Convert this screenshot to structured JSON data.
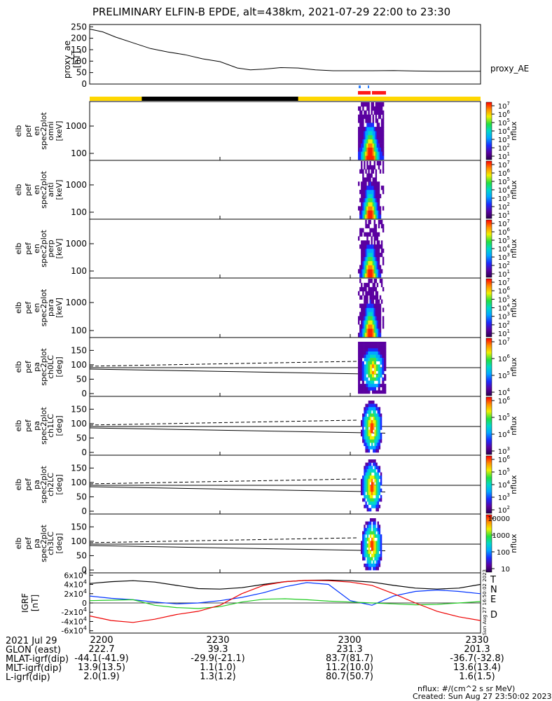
{
  "title": "PRELIMINARY ELFIN-B EPDE, alt=438km, 2021-07-29 22:00 to 23:30",
  "colors": {
    "bar_yellow": "#ffd700",
    "bar_black": "#000000",
    "marker_red": "#ff1a1a",
    "marker_blue": "#2a7fff",
    "igrf_T": "#000000",
    "igrf_N": "#0033ff",
    "igrf_E": "#22cc22",
    "igrf_D": "#ee0000"
  },
  "chart_data": [
    {
      "type": "line",
      "panel": "proxy_ae",
      "ylabel": [
        "proxy_ae",
        "[nT]"
      ],
      "legend": "proxy_AE",
      "ylim": [
        0,
        260
      ],
      "yticks": [
        "250",
        "200",
        "150",
        "100",
        "50",
        "0"
      ],
      "x_minutes": [
        0,
        3,
        6,
        10,
        14,
        18,
        22,
        26,
        30,
        34,
        37,
        40,
        44,
        48,
        52,
        56,
        60,
        65,
        70,
        75,
        80,
        85,
        90
      ],
      "values": [
        240,
        228,
        205,
        180,
        155,
        140,
        128,
        110,
        98,
        70,
        62,
        65,
        72,
        70,
        62,
        58,
        58,
        58,
        59,
        57,
        56,
        56,
        56
      ]
    },
    {
      "type": "heatmap",
      "panel": "spec_omni",
      "ylabel": [
        "elb",
        "pef",
        "en",
        "spec2plot",
        "omni",
        "[keV]"
      ],
      "yticks": [
        "1000",
        "100"
      ],
      "colorbar_label": "nflux",
      "colorbar_ticks": [
        "10^7",
        "10^6",
        "10^5",
        "10^4",
        "10^3",
        "10^2",
        "10^1"
      ]
    },
    {
      "type": "heatmap",
      "panel": "spec_anti",
      "ylabel": [
        "elb",
        "pef",
        "en",
        "spec2plot",
        "anti",
        "[keV]"
      ],
      "yticks": [
        "1000",
        "100"
      ],
      "colorbar_label": "nflux",
      "colorbar_ticks": [
        "10^7",
        "10^6",
        "10^5",
        "10^4",
        "10^3",
        "10^2",
        "10^1"
      ]
    },
    {
      "type": "heatmap",
      "panel": "spec_perp",
      "ylabel": [
        "elb",
        "pef",
        "en",
        "spec2plot",
        "perp",
        "[keV]"
      ],
      "yticks": [
        "1000",
        "100"
      ],
      "colorbar_label": "nflux",
      "colorbar_ticks": [
        "10^7",
        "10^6",
        "10^5",
        "10^4",
        "10^3",
        "10^2",
        "10^1"
      ]
    },
    {
      "type": "heatmap",
      "panel": "spec_para",
      "ylabel": [
        "elb",
        "pef",
        "en",
        "spec2plot",
        "para",
        "[keV]"
      ],
      "yticks": [
        "1000",
        "100"
      ],
      "colorbar_label": "nflux",
      "colorbar_ticks": [
        "10^7",
        "10^6",
        "10^5",
        "10^4",
        "10^3",
        "10^2",
        "10^1"
      ]
    },
    {
      "type": "heatmap",
      "panel": "pa_ch0",
      "ylabel": [
        "elb",
        "pef",
        "pa",
        "spec2plot",
        "ch0LC",
        "[deg]"
      ],
      "yticks": [
        "150",
        "100",
        "50",
        "0"
      ],
      "colorbar_label": "nflux",
      "colorbar_ticks": [
        "10^7",
        "10^6",
        "10^5",
        "10^4"
      ]
    },
    {
      "type": "heatmap",
      "panel": "pa_ch1",
      "ylabel": [
        "elb",
        "pef",
        "pa",
        "spec2plot",
        "ch1LC",
        "[deg]"
      ],
      "yticks": [
        "150",
        "100",
        "50",
        "0"
      ],
      "colorbar_label": "nflux",
      "colorbar_ticks": [
        "10^6",
        "10^5",
        "10^4",
        "10^3"
      ]
    },
    {
      "type": "heatmap",
      "panel": "pa_ch2",
      "ylabel": [
        "elb",
        "pef",
        "pa",
        "spec2plot",
        "ch2LC",
        "[deg]"
      ],
      "yticks": [
        "150",
        "100",
        "50",
        "0"
      ],
      "colorbar_label": "nflux",
      "colorbar_ticks": [
        "10^6",
        "10^5",
        "10^4",
        "10^3",
        "10^2"
      ]
    },
    {
      "type": "heatmap",
      "panel": "pa_ch3",
      "ylabel": [
        "elb",
        "pef",
        "pa",
        "spec2plot",
        "ch3LC",
        "[deg]"
      ],
      "yticks": [
        "150",
        "100",
        "50",
        "0"
      ],
      "colorbar_label": "nflux",
      "colorbar_ticks": [
        "10000",
        "1000",
        "100",
        "10"
      ]
    },
    {
      "type": "line",
      "panel": "igrf",
      "ylabel": [
        "IGRF",
        "[nT]"
      ],
      "yticks": [
        "6x10^4",
        "4x10^4",
        "2x10^4",
        "0",
        "-2x10^4",
        "-4x10^4",
        "-6x10^4"
      ],
      "ylim": [
        -65000,
        65000
      ],
      "legend": [
        "T",
        "N",
        "E",
        "D"
      ],
      "x_minutes": [
        0,
        5,
        10,
        15,
        20,
        25,
        30,
        35,
        40,
        45,
        50,
        55,
        60,
        65,
        70,
        75,
        80,
        85,
        90
      ],
      "series": [
        {
          "name": "T",
          "values": [
            42000,
            46000,
            48000,
            45000,
            38000,
            31000,
            30000,
            33000,
            40000,
            46000,
            49000,
            49500,
            48000,
            45000,
            38000,
            32000,
            30000,
            32000,
            40000
          ]
        },
        {
          "name": "N",
          "values": [
            15000,
            10000,
            7000,
            2000,
            -2000,
            0,
            5000,
            12000,
            22000,
            35000,
            44000,
            40000,
            5000,
            -5000,
            15000,
            25000,
            28000,
            25000,
            20000
          ]
        },
        {
          "name": "E",
          "values": [
            5000,
            6000,
            7000,
            -5000,
            -10000,
            -12000,
            -8000,
            2000,
            8000,
            9000,
            7000,
            4000,
            2000,
            0,
            -2000,
            -4000,
            -3000,
            0,
            3000
          ]
        },
        {
          "name": "D",
          "values": [
            -28000,
            -38000,
            -42000,
            -35000,
            -25000,
            -18000,
            -5000,
            20000,
            38000,
            46000,
            49000,
            48000,
            45000,
            38000,
            20000,
            0,
            -18000,
            -30000,
            -38000
          ]
        }
      ]
    }
  ],
  "timestamp_vertical": "Sun Aug 27 16:50:02 2023",
  "footer": {
    "rows": [
      {
        "label": "2021 Jul 29",
        "values": [
          "2200",
          "2230",
          "2300",
          "2330"
        ]
      },
      {
        "label": "GLON (east)",
        "values": [
          "222.7",
          "39.3",
          "231.3",
          "201.3"
        ]
      },
      {
        "label": "MLAT-igrf(dip)",
        "values": [
          "-44.1(-41.9)",
          "-29.9(-21.1)",
          "83.7(81.7)",
          "-36.7(-32.8)"
        ]
      },
      {
        "label": "MLT-igrf(dip)",
        "values": [
          "13.9(13.5)",
          "1.1(1.0)",
          "11.2(10.0)",
          "13.6(13.4)"
        ]
      },
      {
        "label": "L-igrf(dip)",
        "values": [
          "2.0(1.9)",
          "1.3(1.2)",
          "80.7(50.7)",
          "1.6(1.5)"
        ]
      }
    ],
    "units": "nflux: #/(cm^2 s sr MeV)",
    "created": "Created: Sun Aug 27 23:50:02 2023"
  }
}
